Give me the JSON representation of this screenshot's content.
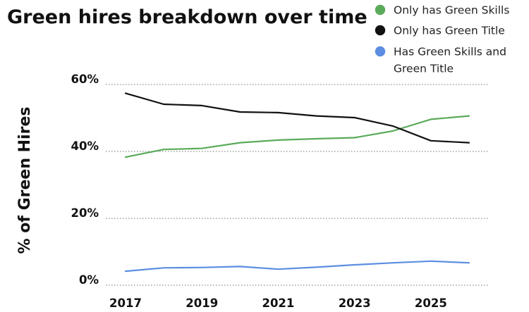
{
  "chart_data": {
    "type": "line",
    "title": "Green hires breakdown over time",
    "ylabel": "% of Green Hires",
    "xlabel": "",
    "x": [
      2017,
      2018,
      2019,
      2020,
      2021,
      2022,
      2023,
      2024,
      2025,
      2026
    ],
    "x_ticks": [
      "2017",
      "2019",
      "2021",
      "2023",
      "2025"
    ],
    "y_ticks": [
      "0%",
      "20%",
      "40%",
      "60%"
    ],
    "ylim": [
      0,
      60
    ],
    "xlim": [
      2017,
      2026
    ],
    "grid": "horizontal dotted",
    "legend": {
      "placement": "top-right",
      "entries": [
        "Only has Green Skills",
        "Only has Green Title",
        [
          "Has Green Skills and",
          "Green Title"
        ]
      ]
    },
    "series": [
      {
        "name": "Only has Green Skills",
        "color": "#5aaa5a",
        "values": [
          38.3,
          40.6,
          40.9,
          42.6,
          43.4,
          43.8,
          44.1,
          46.1,
          49.6,
          50.6
        ]
      },
      {
        "name": "Only has Green Title",
        "color": "#111111",
        "values": [
          57.4,
          54.1,
          53.7,
          51.8,
          51.6,
          50.6,
          50.1,
          47.6,
          43.2,
          42.6
        ]
      },
      {
        "name": "Has Green Skills and Green Title",
        "color": "#5b8ee0",
        "values": [
          4.2,
          5.2,
          5.3,
          5.6,
          4.8,
          5.4,
          6.1,
          6.7,
          7.2,
          6.7
        ]
      }
    ]
  }
}
